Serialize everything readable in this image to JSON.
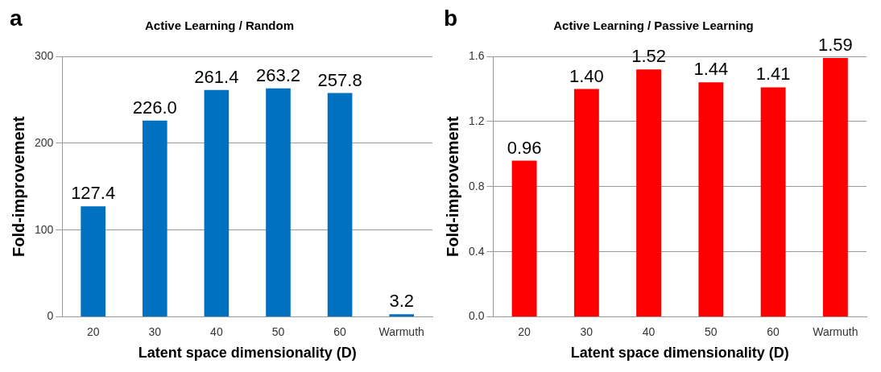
{
  "chart_data": [
    {
      "type": "bar",
      "title": "Active Learning / Random",
      "xlabel": "Latent space dimensionality (D)",
      "ylabel": "Fold-improvement",
      "categories": [
        "20",
        "30",
        "40",
        "50",
        "60",
        "Warmuth"
      ],
      "values": [
        127.4,
        226.0,
        261.4,
        263.2,
        257.8,
        3.2
      ],
      "value_labels": [
        "127.4",
        "226.0",
        "261.4",
        "263.2",
        "257.8",
        "3.2"
      ],
      "color": "#0070c0",
      "ylim": [
        0,
        300
      ],
      "yticks": [
        0,
        100,
        200,
        300
      ],
      "grid": "y",
      "annotations": [
        "a"
      ]
    },
    {
      "type": "bar",
      "title": "Active Learning / Passive Learning",
      "xlabel": "Latent space dimensionality (D)",
      "ylabel": "Fold-improvement",
      "categories": [
        "20",
        "30",
        "40",
        "50",
        "60",
        "Warmuth"
      ],
      "values": [
        0.96,
        1.4,
        1.52,
        1.44,
        1.41,
        1.59
      ],
      "value_labels": [
        "0.96",
        "1.40",
        "1.52",
        "1.44",
        "1.41",
        "1.59"
      ],
      "color": "#ff0000",
      "ylim": [
        0,
        1.6
      ],
      "yticks": [
        {
          "value": 0,
          "label": "0.0"
        },
        {
          "value": 0.4,
          "label": "0.4"
        },
        {
          "value": 0.8,
          "label": "0.8"
        },
        {
          "value": 1.2,
          "label": "1.2"
        },
        {
          "value": 1.6,
          "label": "1.6"
        }
      ],
      "grid": "y",
      "annotations": [
        "b"
      ]
    }
  ]
}
